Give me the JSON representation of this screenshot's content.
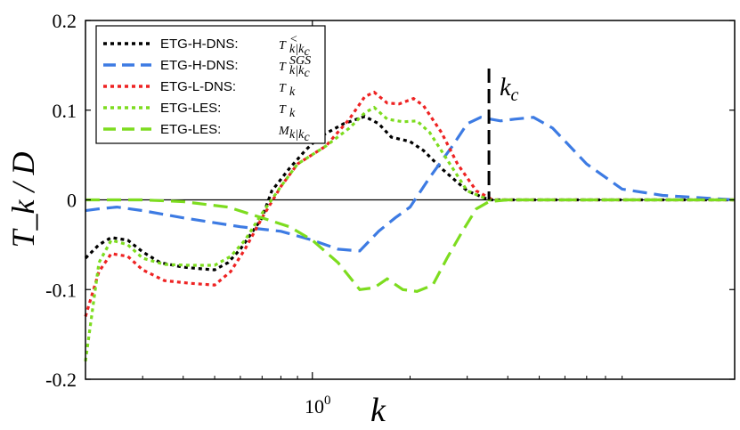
{
  "chart_data": {
    "type": "line",
    "title": "",
    "xlabel": "k",
    "ylabel": "T_k / D",
    "ylim": [
      -0.2,
      0.2
    ],
    "xlim": [
      0.2,
      20
    ],
    "x_scale": "log",
    "y_ticks": [
      {
        "value": 0.2,
        "label": "0.2"
      },
      {
        "value": 0.1,
        "label": "0.1"
      },
      {
        "value": 0.0,
        "label": "0"
      },
      {
        "value": -0.1,
        "label": "-0.1"
      },
      {
        "value": -0.2,
        "label": "-0.2"
      }
    ],
    "x_tick_label": "10",
    "x_tick_exponent": "0",
    "x_tick_value": 1,
    "annotation": {
      "label": "k",
      "subscript": "c",
      "x": 3.5
    },
    "series": [
      {
        "name": "ETG-H-DNS:",
        "math": "T",
        "sub": "k|k",
        "subsub": "c",
        "sup": "<",
        "color": "#000000",
        "style": "dotted",
        "points": [
          [
            0.2,
            -0.065
          ],
          [
            0.22,
            -0.05
          ],
          [
            0.24,
            -0.042
          ],
          [
            0.27,
            -0.045
          ],
          [
            0.3,
            -0.058
          ],
          [
            0.34,
            -0.07
          ],
          [
            0.4,
            -0.075
          ],
          [
            0.46,
            -0.077
          ],
          [
            0.5,
            -0.078
          ],
          [
            0.55,
            -0.07
          ],
          [
            0.6,
            -0.055
          ],
          [
            0.7,
            -0.02
          ],
          [
            0.75,
            0.01
          ],
          [
            0.85,
            0.035
          ],
          [
            0.95,
            0.055
          ],
          [
            1.05,
            0.07
          ],
          [
            1.25,
            0.085
          ],
          [
            1.45,
            0.093
          ],
          [
            1.6,
            0.085
          ],
          [
            1.75,
            0.07
          ],
          [
            2.0,
            0.065
          ],
          [
            2.2,
            0.055
          ],
          [
            2.5,
            0.035
          ],
          [
            3.0,
            0.01
          ],
          [
            3.5,
            0.0
          ],
          [
            5,
            0
          ],
          [
            20,
            0
          ]
        ]
      },
      {
        "name": "ETG-H-DNS:",
        "math": "T",
        "sub": "k|k",
        "subsub": "c",
        "sup": "SGS",
        "color": "#3d7be3",
        "style": "dashed",
        "points": [
          [
            0.2,
            -0.012
          ],
          [
            0.22,
            -0.01
          ],
          [
            0.25,
            -0.008
          ],
          [
            0.3,
            -0.012
          ],
          [
            0.4,
            -0.02
          ],
          [
            0.6,
            -0.03
          ],
          [
            0.8,
            -0.035
          ],
          [
            1.0,
            -0.045
          ],
          [
            1.2,
            -0.055
          ],
          [
            1.4,
            -0.057
          ],
          [
            1.6,
            -0.035
          ],
          [
            1.8,
            -0.02
          ],
          [
            2.0,
            -0.008
          ],
          [
            2.3,
            0.025
          ],
          [
            2.7,
            0.06
          ],
          [
            3.0,
            0.085
          ],
          [
            3.3,
            0.092
          ],
          [
            3.8,
            0.088
          ],
          [
            4.2,
            0.09
          ],
          [
            4.8,
            0.092
          ],
          [
            5.5,
            0.08
          ],
          [
            7,
            0.04
          ],
          [
            9,
            0.012
          ],
          [
            12,
            0.005
          ],
          [
            20,
            0
          ]
        ]
      },
      {
        "name": "ETG-L-DNS:",
        "math": "T",
        "sub": "k",
        "subsub": "",
        "sup": "",
        "color": "#ee2323",
        "style": "dotted",
        "points": [
          [
            0.2,
            -0.13
          ],
          [
            0.22,
            -0.08
          ],
          [
            0.24,
            -0.06
          ],
          [
            0.27,
            -0.063
          ],
          [
            0.3,
            -0.078
          ],
          [
            0.35,
            -0.09
          ],
          [
            0.42,
            -0.093
          ],
          [
            0.5,
            -0.095
          ],
          [
            0.56,
            -0.08
          ],
          [
            0.62,
            -0.055
          ],
          [
            0.7,
            -0.02
          ],
          [
            0.8,
            0.015
          ],
          [
            0.9,
            0.04
          ],
          [
            1.1,
            0.06
          ],
          [
            1.3,
            0.09
          ],
          [
            1.45,
            0.115
          ],
          [
            1.55,
            0.12
          ],
          [
            1.7,
            0.108
          ],
          [
            1.85,
            0.107
          ],
          [
            2.05,
            0.113
          ],
          [
            2.2,
            0.105
          ],
          [
            2.5,
            0.075
          ],
          [
            2.8,
            0.04
          ],
          [
            3.2,
            0.01
          ],
          [
            3.6,
            0.0
          ],
          [
            5,
            0
          ],
          [
            20,
            0
          ]
        ]
      },
      {
        "name": "ETG-LES:",
        "math": "T",
        "sub": "k",
        "subsub": "",
        "sup": "",
        "color": "#7ddc1f",
        "style": "dotted",
        "points": [
          [
            0.2,
            -0.18
          ],
          [
            0.22,
            -0.07
          ],
          [
            0.24,
            -0.045
          ],
          [
            0.27,
            -0.05
          ],
          [
            0.3,
            -0.065
          ],
          [
            0.35,
            -0.072
          ],
          [
            0.42,
            -0.073
          ],
          [
            0.5,
            -0.073
          ],
          [
            0.56,
            -0.063
          ],
          [
            0.62,
            -0.045
          ],
          [
            0.7,
            -0.015
          ],
          [
            0.8,
            0.015
          ],
          [
            0.9,
            0.04
          ],
          [
            1.1,
            0.06
          ],
          [
            1.3,
            0.08
          ],
          [
            1.45,
            0.097
          ],
          [
            1.55,
            0.103
          ],
          [
            1.7,
            0.09
          ],
          [
            1.9,
            0.087
          ],
          [
            2.1,
            0.088
          ],
          [
            2.3,
            0.075
          ],
          [
            2.6,
            0.045
          ],
          [
            3.0,
            0.01
          ],
          [
            3.5,
            0.0
          ],
          [
            5,
            0
          ],
          [
            20,
            0
          ]
        ]
      },
      {
        "name": "ETG-LES:",
        "math": "M",
        "sub": "k|k",
        "subsub": "c",
        "sup": "",
        "color": "#7ddc1f",
        "style": "dashed",
        "points": [
          [
            0.2,
            0.0
          ],
          [
            0.3,
            0.0
          ],
          [
            0.4,
            -0.002
          ],
          [
            0.55,
            -0.008
          ],
          [
            0.7,
            -0.02
          ],
          [
            0.85,
            -0.03
          ],
          [
            1.0,
            -0.045
          ],
          [
            1.2,
            -0.07
          ],
          [
            1.4,
            -0.1
          ],
          [
            1.55,
            -0.098
          ],
          [
            1.7,
            -0.088
          ],
          [
            1.9,
            -0.1
          ],
          [
            2.1,
            -0.102
          ],
          [
            2.35,
            -0.095
          ],
          [
            2.6,
            -0.065
          ],
          [
            2.9,
            -0.035
          ],
          [
            3.2,
            -0.01
          ],
          [
            3.5,
            -0.002
          ],
          [
            4,
            0
          ],
          [
            20,
            0
          ]
        ]
      }
    ]
  }
}
